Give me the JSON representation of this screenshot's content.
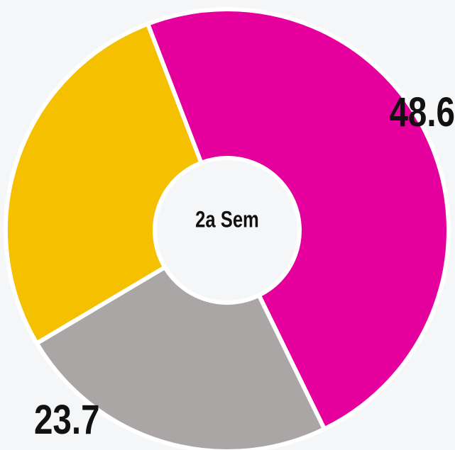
{
  "chart_data": {
    "type": "donut",
    "center_label": "2a Sem",
    "values": [
      48.6,
      23.7,
      27.7
    ],
    "colors": [
      "#e5009e",
      "#aaa6a6",
      "#f5c000"
    ]
  }
}
